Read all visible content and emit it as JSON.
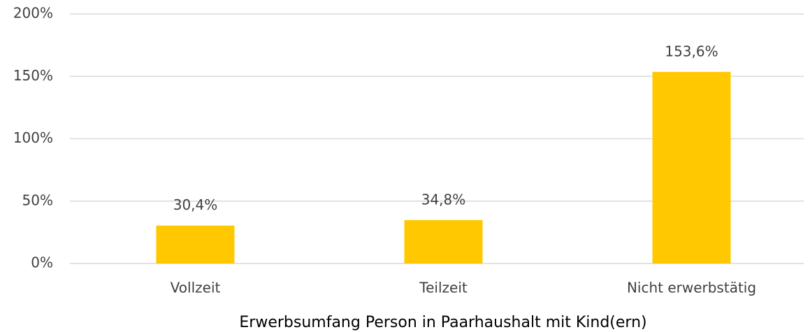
{
  "chart_data": {
    "type": "bar",
    "categories": [
      "Vollzeit",
      "Teilzeit",
      "Nicht erwerbstätig"
    ],
    "values": [
      30.4,
      34.8,
      153.6
    ],
    "value_labels": [
      "30,4%",
      "34,8%",
      "153,6%"
    ],
    "color": "#ffc800",
    "x_label": "Erwerbsumfang Person in Paarhaushalt mit Kind(ern)",
    "ylim": [
      0,
      200
    ],
    "yticks": [
      {
        "value": 0,
        "label": "0%"
      },
      {
        "value": 50,
        "label": "50%"
      },
      {
        "value": 100,
        "label": "100%"
      },
      {
        "value": 150,
        "label": "150%"
      },
      {
        "value": 200,
        "label": "200%"
      }
    ],
    "grid": true
  }
}
